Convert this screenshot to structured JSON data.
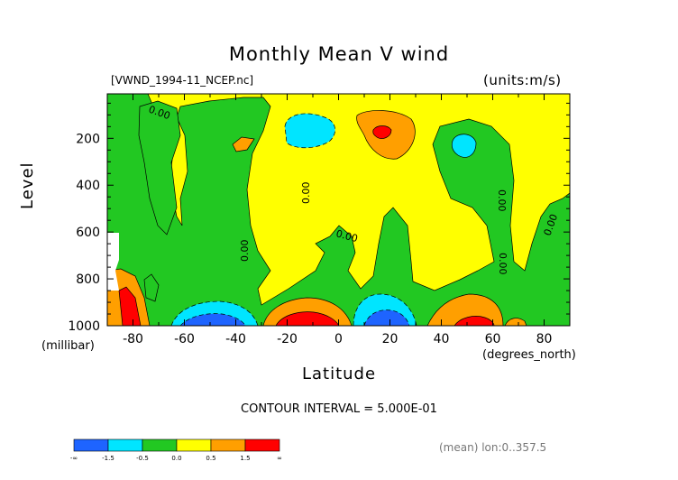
{
  "chart_data": {
    "type": "heatmap",
    "title": "Monthly Mean V wind",
    "file_label": "[VWND_1994-11_NCEP.nc]",
    "units_label": "(units:m/s)",
    "xlabel": "Latitude",
    "x_unit_label": "(degrees_north)",
    "ylabel": "Level",
    "y_unit_label": "(millibar)",
    "xlim": [
      -90,
      90
    ],
    "ylim": [
      1000,
      10
    ],
    "x_ticks": [
      "-80",
      "-60",
      "-40",
      "-20",
      "0",
      "20",
      "40",
      "60",
      "80"
    ],
    "y_ticks": [
      "200",
      "400",
      "600",
      "800",
      "1000"
    ],
    "contour_interval_text": "CONTOUR INTERVAL = 5.000E-01",
    "contour_label": "0.00",
    "mean_note": "(mean) lon:0..357.5",
    "colorbar": {
      "colors": [
        "#1e64ff",
        "#00e5ff",
        "#22c822",
        "#ffff00",
        "#ff9f00",
        "#ff0000"
      ],
      "labels": [
        "-∞",
        "-1.5",
        "-0.5",
        "0.0",
        "0.5",
        "1.5",
        "∞"
      ]
    },
    "features": [
      {
        "name": "upper negative cell",
        "lat": -5,
        "level": 150,
        "value": -1.0
      },
      {
        "name": "upper positive cell",
        "lat": 17,
        "level": 150,
        "value": 1.5
      },
      {
        "name": "upper negative cell",
        "lat": 52,
        "level": 200,
        "value": -1.0
      },
      {
        "name": "surface negative cell",
        "lat": -48,
        "level": 1000,
        "value": -2.0
      },
      {
        "name": "surface positive cell",
        "lat": -10,
        "level": 1000,
        "value": 2.0
      },
      {
        "name": "surface negative cell",
        "lat": 18,
        "level": 1000,
        "value": -2.0
      },
      {
        "name": "surface positive cell",
        "lat": 52,
        "level": 1000,
        "value": 1.5
      },
      {
        "name": "surface positive cell",
        "lat": -84,
        "level": 950,
        "value": 2.0
      }
    ]
  }
}
